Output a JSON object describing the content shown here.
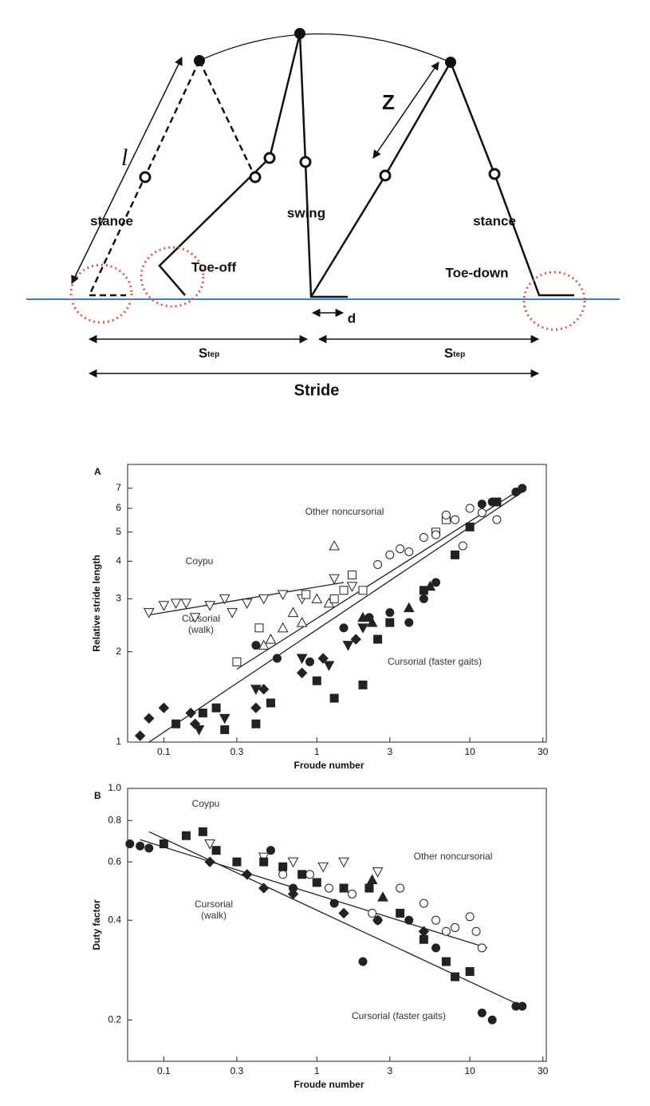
{
  "diagram": {
    "leg_length": "l",
    "stance_left": "stance",
    "swing": "swing",
    "z": "Z",
    "stance_right": "stance",
    "toe_off": "Toe-off",
    "toe_down": "Toe-down",
    "d": "d",
    "step_left": {
      "main": "S",
      "sub": "tep"
    },
    "step_right": {
      "main": "S",
      "sub": "tep"
    },
    "stride": "Stride"
  },
  "chart_data": [
    {
      "type": "scatter",
      "panel": "A",
      "xlabel": "Froude number",
      "ylabel": "Relative stride length",
      "log_x": true,
      "log_y": true,
      "xlim": [
        0.058,
        31.6
      ],
      "ylim": [
        1,
        8.4
      ],
      "xticks": [
        0.1,
        0.3,
        1,
        3,
        10,
        30
      ],
      "yticks": [
        1,
        2,
        3,
        4,
        5,
        6,
        7
      ],
      "annotations": [
        "Other noncursorial",
        "Coypu",
        [
          "Cursorial",
          "(walk)"
        ],
        "Cursorial (faster gaits)"
      ],
      "series": [
        {
          "marker": "triangle-down",
          "filled": false,
          "color": "#222",
          "x": [
            0.08,
            0.1,
            0.12,
            0.14,
            0.16,
            0.2,
            0.25,
            0.28,
            0.35,
            0.45,
            0.6,
            0.8,
            1.3,
            1.7
          ],
          "y": [
            2.7,
            2.85,
            2.9,
            2.9,
            2.6,
            2.85,
            3.0,
            2.7,
            2.9,
            3.0,
            3.1,
            3.0,
            3.5,
            3.3
          ]
        },
        {
          "marker": "triangle",
          "filled": false,
          "color": "#222",
          "x": [
            0.45,
            0.5,
            0.6,
            0.7,
            0.8,
            1.0,
            1.2,
            1.3
          ],
          "y": [
            2.1,
            2.2,
            2.4,
            2.7,
            2.5,
            3.0,
            2.9,
            4.5
          ]
        },
        {
          "marker": "square",
          "filled": false,
          "color": "#222",
          "x": [
            0.3,
            0.42,
            0.85,
            1.3,
            1.5,
            1.7,
            2.0,
            6,
            7
          ],
          "y": [
            1.85,
            2.4,
            3.1,
            3.0,
            3.2,
            3.6,
            3.2,
            5.0,
            5.5
          ]
        },
        {
          "marker": "circle",
          "filled": false,
          "color": "#222",
          "x": [
            2.5,
            3,
            3.5,
            4,
            5,
            6,
            7,
            8,
            10,
            12,
            15,
            9
          ],
          "y": [
            3.9,
            4.2,
            4.4,
            4.3,
            4.8,
            4.9,
            5.7,
            5.5,
            6.0,
            5.8,
            5.5,
            4.5
          ]
        },
        {
          "marker": "circle",
          "filled": true,
          "color": "#222",
          "x": [
            0.4,
            0.55,
            0.9,
            1.5,
            2.2,
            3,
            4,
            5,
            6,
            12,
            14,
            20,
            22
          ],
          "y": [
            2.1,
            1.9,
            1.85,
            2.4,
            2.6,
            2.7,
            2.5,
            3.0,
            3.4,
            6.2,
            6.3,
            6.8,
            7.0
          ]
        },
        {
          "marker": "square",
          "filled": true,
          "color": "#222",
          "x": [
            0.12,
            0.18,
            0.22,
            0.25,
            0.4,
            0.5,
            1.0,
            1.3,
            2.0,
            2.5,
            3,
            5,
            8,
            10,
            15
          ],
          "y": [
            1.15,
            1.25,
            1.3,
            1.1,
            1.15,
            1.35,
            1.6,
            1.4,
            1.55,
            2.2,
            2.5,
            3.2,
            4.2,
            5.2,
            6.3
          ]
        },
        {
          "marker": "diamond",
          "filled": true,
          "color": "#222",
          "x": [
            0.07,
            0.08,
            0.1,
            0.15,
            0.16,
            0.4,
            0.45,
            0.8,
            1.1,
            1.8
          ],
          "y": [
            1.05,
            1.2,
            1.3,
            1.25,
            1.15,
            1.3,
            1.5,
            1.7,
            1.9,
            2.2
          ]
        },
        {
          "marker": "triangle",
          "filled": true,
          "color": "#222",
          "x": [
            2.0,
            2.3,
            4,
            5.5
          ],
          "y": [
            2.6,
            2.5,
            2.8,
            3.3
          ]
        },
        {
          "marker": "triangle-down",
          "filled": true,
          "color": "#222",
          "x": [
            0.17,
            0.25,
            0.4,
            0.8,
            1.2,
            1.6,
            2
          ],
          "y": [
            1.1,
            1.2,
            1.5,
            1.9,
            1.8,
            2.1,
            2.4
          ]
        }
      ],
      "fits": [
        {
          "x": [
            0.08,
            1.5
          ],
          "y": [
            2.65,
            3.4
          ]
        },
        {
          "x": [
            0.3,
            22
          ],
          "y": [
            1.75,
            7.0
          ]
        },
        {
          "x": [
            0.08,
            22
          ],
          "y": [
            1.0,
            6.8
          ]
        }
      ]
    },
    {
      "type": "scatter",
      "panel": "B",
      "xlabel": "Froude number",
      "ylabel": "Duty factor",
      "log_x": true,
      "log_y": true,
      "xlim": [
        0.058,
        31.6
      ],
      "ylim": [
        0.15,
        1
      ],
      "xticks": [
        0.1,
        0.3,
        1,
        3,
        10,
        30
      ],
      "yticks": [
        0.2,
        0.4,
        0.6,
        0.8,
        {
          "value": 1,
          "label": "1.0"
        }
      ],
      "annotations": [
        "Coypu",
        "Other noncursorial",
        [
          "Cursorial",
          "(walk)"
        ],
        "Cursorial (faster gaits)"
      ],
      "series": [
        {
          "marker": "triangle-down",
          "filled": false,
          "color": "#222",
          "x": [
            0.2,
            0.45,
            0.7,
            1.1,
            1.5,
            2.5
          ],
          "y": [
            0.68,
            0.62,
            0.6,
            0.58,
            0.6,
            0.56
          ]
        },
        {
          "marker": "circle",
          "filled": false,
          "color": "#222",
          "x": [
            0.3,
            0.6,
            0.9,
            1.2,
            1.7,
            2.3,
            2.5,
            3.5,
            5,
            6,
            7,
            8,
            10,
            11,
            12
          ],
          "y": [
            0.6,
            0.55,
            0.55,
            0.5,
            0.48,
            0.42,
            0.4,
            0.5,
            0.45,
            0.4,
            0.37,
            0.38,
            0.41,
            0.37,
            0.33
          ]
        },
        {
          "marker": "square",
          "filled": true,
          "color": "#222",
          "x": [
            0.1,
            0.14,
            0.18,
            0.22,
            0.3,
            0.45,
            0.6,
            0.8,
            1.0,
            1.5,
            2.2,
            3.5,
            5,
            7,
            8,
            10
          ],
          "y": [
            0.68,
            0.72,
            0.74,
            0.65,
            0.6,
            0.6,
            0.58,
            0.55,
            0.52,
            0.5,
            0.5,
            0.42,
            0.35,
            0.3,
            0.27,
            0.28
          ]
        },
        {
          "marker": "circle",
          "filled": true,
          "color": "#222",
          "x": [
            0.06,
            0.07,
            0.08,
            0.5,
            0.7,
            1.3,
            2,
            4,
            6,
            12,
            14,
            20,
            22
          ],
          "y": [
            0.68,
            0.67,
            0.66,
            0.65,
            0.5,
            0.45,
            0.3,
            0.4,
            0.33,
            0.21,
            0.2,
            0.22,
            0.22
          ]
        },
        {
          "marker": "diamond",
          "filled": true,
          "color": "#222",
          "x": [
            0.2,
            0.35,
            0.45,
            0.7,
            1.5,
            2.5,
            5
          ],
          "y": [
            0.6,
            0.55,
            0.5,
            0.48,
            0.42,
            0.4,
            0.37
          ]
        },
        {
          "marker": "triangle",
          "filled": true,
          "color": "#222",
          "x": [
            2.3,
            2.7
          ],
          "y": [
            0.53,
            0.47
          ]
        }
      ],
      "fits": [
        {
          "x": [
            0.07,
            13
          ],
          "y": [
            0.7,
            0.33
          ]
        },
        {
          "x": [
            0.08,
            22
          ],
          "y": [
            0.74,
            0.22
          ]
        }
      ]
    }
  ]
}
